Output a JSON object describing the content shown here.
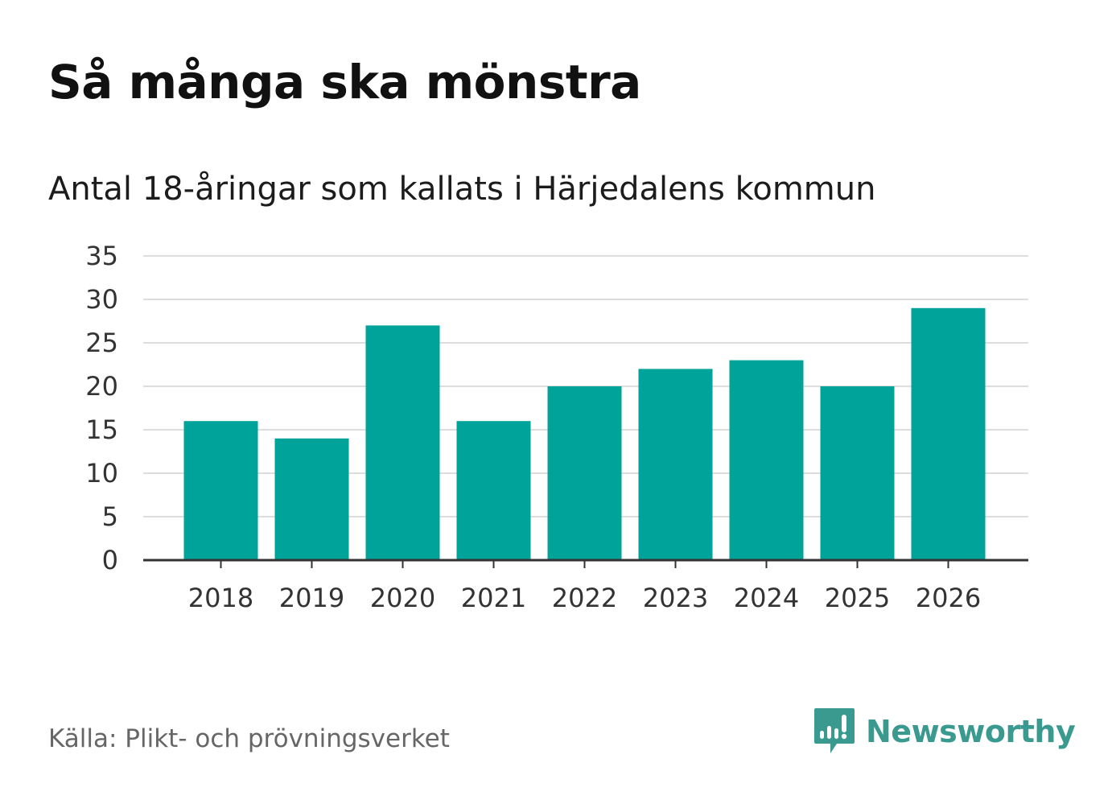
{
  "header": {
    "title": "Så många ska mönstra",
    "subtitle": "Antal 18-åringar som kallats i Härjedalens kommun"
  },
  "chart_data": {
    "type": "bar",
    "title": "Så många ska mönstra",
    "subtitle": "Antal 18-åringar som kallats i Härjedalens kommun",
    "categories": [
      "2018",
      "2019",
      "2020",
      "2021",
      "2022",
      "2023",
      "2024",
      "2025",
      "2026"
    ],
    "values": [
      16,
      14,
      27,
      16,
      20,
      22,
      23,
      20,
      29
    ],
    "xlabel": "",
    "ylabel": "",
    "ylim": [
      0,
      35
    ],
    "yticks": [
      0,
      5,
      10,
      15,
      20,
      25,
      30,
      35
    ],
    "grid": true,
    "legend": "none"
  },
  "colors": {
    "bar": "#00a39a",
    "grid": "#dddddd",
    "axis": "#333333",
    "brand": "#3a9a90"
  },
  "footer": {
    "source": "Källa: Plikt- och prövningsverket",
    "brand_name": "Newsworthy"
  }
}
